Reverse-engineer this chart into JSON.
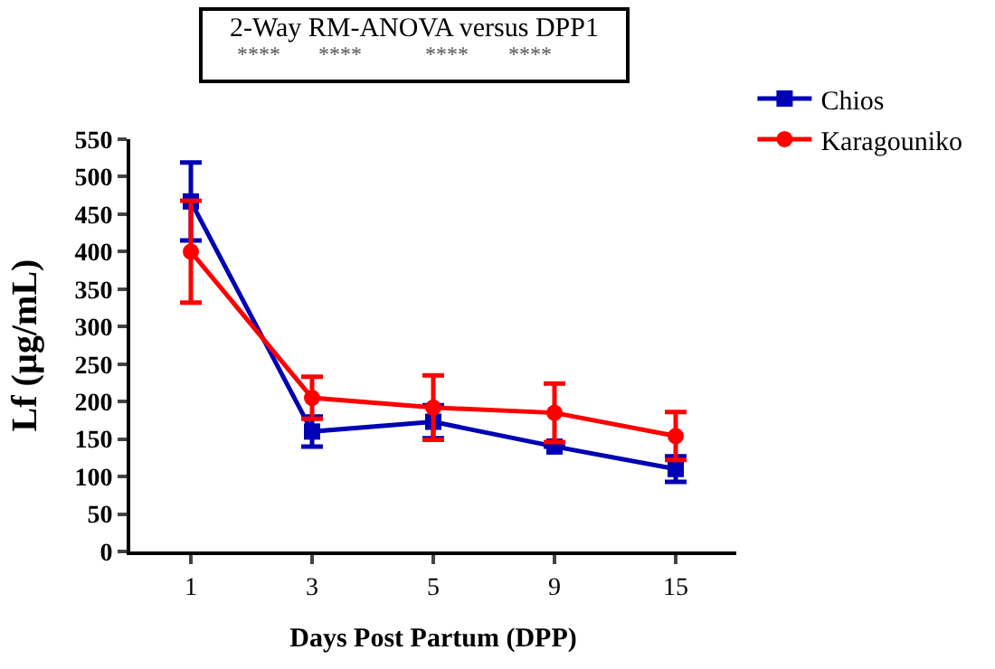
{
  "chart_data": {
    "type": "line",
    "title": "2-Way RM-ANOVA versus DPP1",
    "annotations": [
      "****",
      "****",
      "****",
      "****"
    ],
    "xlabel": "Days Post Partum (DPP)",
    "ylabel": "Lf (µg/mL)",
    "categories": [
      "1",
      "3",
      "5",
      "9",
      "15"
    ],
    "ylim": [
      0,
      550
    ],
    "yticks": [
      0,
      50,
      100,
      150,
      200,
      250,
      300,
      350,
      400,
      450,
      500,
      550
    ],
    "legend": "top right",
    "series": [
      {
        "name": "Chios",
        "color": "#0000b4",
        "marker": "square",
        "values": [
          467,
          160,
          173,
          140,
          110
        ],
        "errors": [
          52,
          20,
          22,
          null,
          17
        ]
      },
      {
        "name": "Karagouniko",
        "color": "#ff0000",
        "marker": "circle",
        "values": [
          400,
          205,
          192,
          185,
          154
        ],
        "errors": [
          68,
          28,
          43,
          39,
          32
        ]
      }
    ]
  }
}
